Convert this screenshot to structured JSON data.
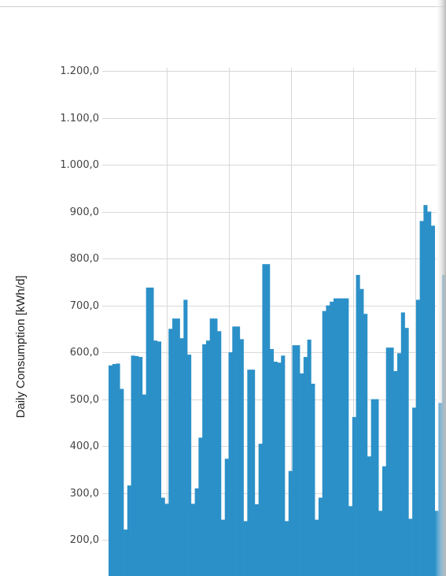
{
  "chart_data": {
    "type": "bar",
    "y_label": "Daily Consumption [kWh/d]",
    "color": "#2b90c8",
    "grid": true,
    "ylim": [
      123,
      1200
    ],
    "yticks": [
      {
        "value": 200,
        "label": "200,0"
      },
      {
        "value": 300,
        "label": "300,0"
      },
      {
        "value": 400,
        "label": "400,0"
      },
      {
        "value": 500,
        "label": "500,0"
      },
      {
        "value": 600,
        "label": "600,0"
      },
      {
        "value": 700,
        "label": "700,0"
      },
      {
        "value": 800,
        "label": "800,0"
      },
      {
        "value": 900,
        "label": "900,0"
      },
      {
        "value": 1000,
        "label": "1.000,0"
      },
      {
        "value": 1100,
        "label": "1.100,0"
      },
      {
        "value": 1200,
        "label": "1.200,0"
      }
    ],
    "values": [
      572,
      575,
      576,
      522,
      222,
      316,
      593,
      592,
      590,
      510,
      738,
      738,
      625,
      623,
      290,
      277,
      650,
      672,
      672,
      630,
      712,
      595,
      277,
      310,
      418,
      617,
      625,
      672,
      672,
      645,
      243,
      373,
      600,
      655,
      655,
      628,
      240,
      563,
      563,
      276,
      405,
      788,
      788,
      607,
      580,
      578,
      593,
      240,
      347,
      615,
      615,
      555,
      590,
      627,
      533,
      243,
      290,
      688,
      700,
      708,
      715,
      715,
      715,
      715,
      272,
      462,
      765,
      735,
      682,
      378,
      500,
      500,
      262,
      357,
      610,
      610,
      560,
      598,
      685,
      652,
      245,
      482,
      712,
      880,
      914,
      900,
      870,
      262,
      492,
      765
    ]
  }
}
